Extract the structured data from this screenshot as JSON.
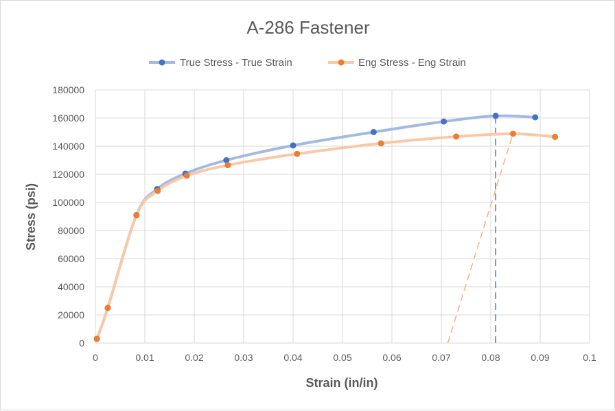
{
  "chart_data": {
    "type": "scatter",
    "title": "A-286 Fastener",
    "xlabel": "Strain (in/in)",
    "ylabel": "Stress (psi)",
    "xlim": [
      0,
      0.1
    ],
    "ylim": [
      0,
      180000
    ],
    "x_ticks": [
      "0",
      "0.01",
      "0.02",
      "0.03",
      "0.04",
      "0.05",
      "0.06",
      "0.07",
      "0.08",
      "0.09",
      "0.1"
    ],
    "y_ticks": [
      "0",
      "20000",
      "40000",
      "60000",
      "80000",
      "100000",
      "120000",
      "140000",
      "160000",
      "180000"
    ],
    "grid": true,
    "legend_position": "top",
    "smooth_lines": true,
    "series": [
      {
        "name": "True Stress - True Strain",
        "color": "#4472c4",
        "line_color": "#a4b9e2",
        "points": [
          [
            0.0003,
            3000
          ],
          [
            0.0025,
            25000
          ],
          [
            0.0083,
            91000
          ],
          [
            0.0125,
            109500
          ],
          [
            0.0182,
            120500
          ],
          [
            0.0265,
            130000
          ],
          [
            0.04,
            140500
          ],
          [
            0.0563,
            150000
          ],
          [
            0.0705,
            157500
          ],
          [
            0.081,
            161500
          ],
          [
            0.089,
            160500
          ]
        ]
      },
      {
        "name": "Eng Stress - Eng Strain",
        "color": "#ed7d31",
        "line_color": "#f8c8a8",
        "points": [
          [
            0.0003,
            3000
          ],
          [
            0.0025,
            25000
          ],
          [
            0.0083,
            90800
          ],
          [
            0.0126,
            108200
          ],
          [
            0.0185,
            119000
          ],
          [
            0.0268,
            126500
          ],
          [
            0.0408,
            134500
          ],
          [
            0.0578,
            142000
          ],
          [
            0.073,
            146800
          ],
          [
            0.0845,
            148800
          ],
          [
            0.093,
            146600
          ]
        ]
      }
    ],
    "reference_lines": [
      {
        "style": "dashed",
        "color": "#4472c4",
        "points": [
          [
            0.081,
            0
          ],
          [
            0.081,
            161500
          ]
        ]
      },
      {
        "style": "dashed",
        "color": "#f4b183",
        "points": [
          [
            0.0713,
            0
          ],
          [
            0.0845,
            148800
          ]
        ]
      }
    ]
  }
}
